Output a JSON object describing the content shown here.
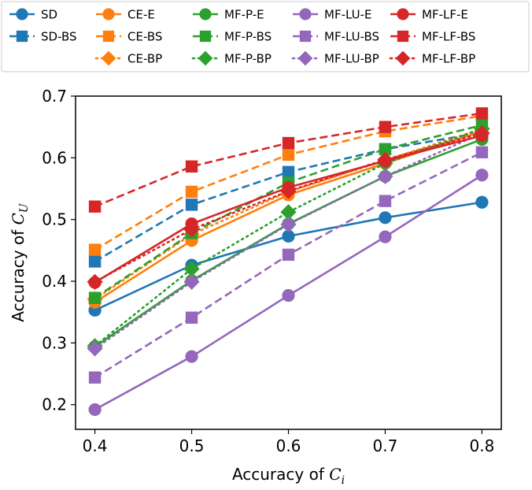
{
  "chart_data": {
    "type": "line",
    "xlabel": "Accuracy of Ci",
    "ylabel": "Accuracy of CU",
    "xlim": [
      0.38,
      0.82
    ],
    "ylim": [
      0.16,
      0.7
    ],
    "xticks": [
      0.4,
      0.5,
      0.6,
      0.7,
      0.8
    ],
    "xtick_labels": [
      "0.4",
      "0.5",
      "0.6",
      "0.7",
      "0.8"
    ],
    "yticks": [
      0.2,
      0.3,
      0.4,
      0.5,
      0.6,
      0.7
    ],
    "ytick_labels": [
      "0.2",
      "0.3",
      "0.4",
      "0.5",
      "0.6",
      "0.7"
    ],
    "grid": false,
    "legend_placement": "top, outside plot, 6 columns",
    "x": [
      0.4,
      0.5,
      0.6,
      0.7,
      0.8
    ],
    "series": [
      {
        "name": "SD",
        "color": "#1f77b4",
        "style": "solid",
        "marker": "circle",
        "values": [
          0.353,
          0.426,
          0.473,
          0.503,
          0.528
        ]
      },
      {
        "name": "SD-BS",
        "color": "#1f77b4",
        "style": "dashed",
        "marker": "square",
        "values": [
          0.432,
          0.524,
          0.577,
          0.614,
          0.641
        ]
      },
      {
        "name": "CE-E",
        "color": "#ff7f0e",
        "style": "solid",
        "marker": "circle",
        "values": [
          0.366,
          0.466,
          0.54,
          0.591,
          0.643
        ]
      },
      {
        "name": "CE-BS",
        "color": "#ff7f0e",
        "style": "dashed",
        "marker": "square",
        "values": [
          0.451,
          0.545,
          0.605,
          0.643,
          0.668
        ]
      },
      {
        "name": "CE-BP",
        "color": "#ff7f0e",
        "style": "dotted",
        "marker": "diamond",
        "values": [
          0.371,
          0.476,
          0.545,
          0.596,
          0.647
        ]
      },
      {
        "name": "MF-P-E",
        "color": "#2ca02c",
        "style": "solid",
        "marker": "circle",
        "values": [
          0.294,
          0.401,
          0.493,
          0.57,
          0.63
        ]
      },
      {
        "name": "MF-P-BS",
        "color": "#2ca02c",
        "style": "dashed",
        "marker": "square",
        "values": [
          0.373,
          0.478,
          0.56,
          0.614,
          0.653
        ]
      },
      {
        "name": "MF-P-BP",
        "color": "#2ca02c",
        "style": "dotted",
        "marker": "diamond",
        "values": [
          0.295,
          0.42,
          0.512,
          0.591,
          0.647
        ]
      },
      {
        "name": "MF-LU-E",
        "color": "#9467bd",
        "style": "solid",
        "marker": "circle",
        "values": [
          0.192,
          0.278,
          0.377,
          0.472,
          0.572
        ]
      },
      {
        "name": "MF-LU-BS",
        "color": "#9467bd",
        "style": "dashed",
        "marker": "square",
        "values": [
          0.244,
          0.341,
          0.443,
          0.53,
          0.609
        ]
      },
      {
        "name": "MF-LU-BP",
        "color": "#9467bd",
        "style": "dotted",
        "marker": "diamond",
        "values": [
          0.291,
          0.399,
          0.492,
          0.57,
          0.64
        ]
      },
      {
        "name": "MF-LF-E",
        "color": "#d62728",
        "style": "solid",
        "marker": "circle",
        "values": [
          0.398,
          0.493,
          0.552,
          0.595,
          0.636
        ]
      },
      {
        "name": "MF-LF-BS",
        "color": "#d62728",
        "style": "dashed",
        "marker": "square",
        "values": [
          0.521,
          0.586,
          0.624,
          0.65,
          0.672
        ]
      },
      {
        "name": "MF-LF-BP",
        "color": "#d62728",
        "style": "dotted",
        "marker": "diamond",
        "values": [
          0.399,
          0.484,
          0.546,
          0.597,
          0.64
        ]
      }
    ]
  }
}
